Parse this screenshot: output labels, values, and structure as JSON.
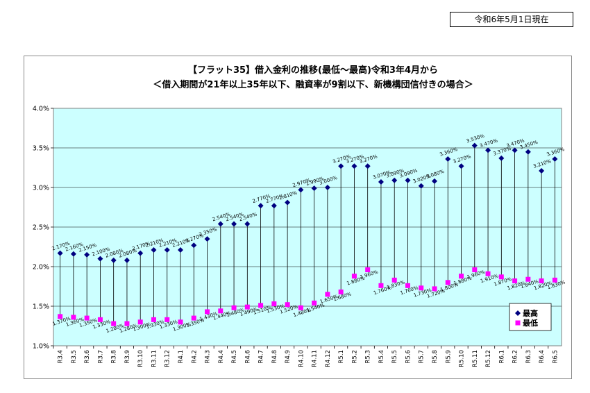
{
  "as_of": "令和6年5月1日現在",
  "chart_data": {
    "type": "line",
    "title": "【フラット35】借入金利の推移(最低～最高)令和3年4月から",
    "subtitle": "＜借入期間が21年以上35年以下、融資率が9割以下、新機構団信付きの場合＞",
    "xlabel": "",
    "ylabel": "",
    "ylim": [
      1.0,
      4.0
    ],
    "y_ticks": [
      "1.0%",
      "1.5%",
      "2.0%",
      "2.5%",
      "3.0%",
      "3.5%",
      "4.0%"
    ],
    "grid": true,
    "legend_position": "bottom-right",
    "categories": [
      "R3.4",
      "R3.5",
      "R3.6",
      "R3.7",
      "R3.8",
      "R3.9",
      "R3.10",
      "R3.11",
      "R3.12",
      "R4.1",
      "R4.2",
      "R4.3",
      "R4.4",
      "R4.5",
      "R4.6",
      "R4.7",
      "R4.8",
      "R4.9",
      "R4.10",
      "R4.11",
      "R4.12",
      "R5.1",
      "R5.2",
      "R5.3",
      "R5.4",
      "R5.5",
      "R5.6",
      "R5.7",
      "R5.8",
      "R5.9",
      "R5.10",
      "R5.11",
      "R5.12",
      "R6.1",
      "R6.2",
      "R6.3",
      "R6.4",
      "R6.5"
    ],
    "series": [
      {
        "name": "最高",
        "color": "#000080",
        "marker": "diamond",
        "values": [
          2.17,
          2.16,
          2.15,
          2.1,
          2.08,
          2.08,
          2.17,
          2.21,
          2.21,
          2.21,
          2.27,
          2.35,
          2.54,
          2.54,
          2.54,
          2.77,
          2.77,
          2.81,
          2.97,
          2.99,
          3.0,
          3.27,
          3.27,
          3.27,
          3.07,
          3.09,
          3.09,
          3.02,
          3.08,
          3.36,
          3.27,
          3.53,
          3.47,
          3.37,
          3.47,
          3.45,
          3.21,
          3.36
        ],
        "labels": [
          "2.170%",
          "2.160%",
          "2.150%",
          "2.100%",
          "2.080%",
          "2.080%",
          "2.170%",
          "2.210%",
          "2.210%",
          "2.210%",
          "2.270%",
          "2.350%",
          "2.540%",
          "2.540%",
          "2.540%",
          "2.770%",
          "2.770%",
          "2.810%",
          "2.970%",
          "2.990%",
          "3.000%",
          "3.270%",
          "3.270%",
          "3.270%",
          "3.070%",
          "3.090%",
          "3.090%",
          "3.020%",
          "3.080%",
          "3.360%",
          "3.270%",
          "3.530%",
          "3.470%",
          "3.370%",
          "3.470%",
          "3.450%",
          "3.210%",
          "3.360%"
        ]
      },
      {
        "name": "最低",
        "color": "#ff00ff",
        "marker": "square",
        "values": [
          1.37,
          1.36,
          1.35,
          1.33,
          1.28,
          1.28,
          1.3,
          1.33,
          1.33,
          1.3,
          1.35,
          1.43,
          1.44,
          1.48,
          1.49,
          1.51,
          1.53,
          1.52,
          1.48,
          1.54,
          1.65,
          1.68,
          1.88,
          1.96,
          1.76,
          1.83,
          1.76,
          1.73,
          1.72,
          1.8,
          1.88,
          1.96,
          1.91,
          1.87,
          1.82,
          1.84,
          1.82,
          1.83
        ],
        "labels": [
          "1.370%",
          "1.360%",
          "1.350%",
          "1.330%",
          "1.280%",
          "1.280%",
          "1.300%",
          "1.330%",
          "1.330%",
          "1.300%",
          "1.350%",
          "1.430%",
          "1.440%",
          "1.480%",
          "1.490%",
          "1.510%",
          "1.530%",
          "1.520%",
          "1.480%",
          "1.540%",
          "1.650%",
          "1.680%",
          "1.880%",
          "1.960%",
          "1.760%",
          "1.830%",
          "1.760%",
          "1.730%",
          "1.720%",
          "1.800%",
          "1.880%",
          "1.960%",
          "1.910%",
          "1.870%",
          "1.820%",
          "1.840%",
          "1.820%",
          "1.830%"
        ]
      }
    ]
  }
}
